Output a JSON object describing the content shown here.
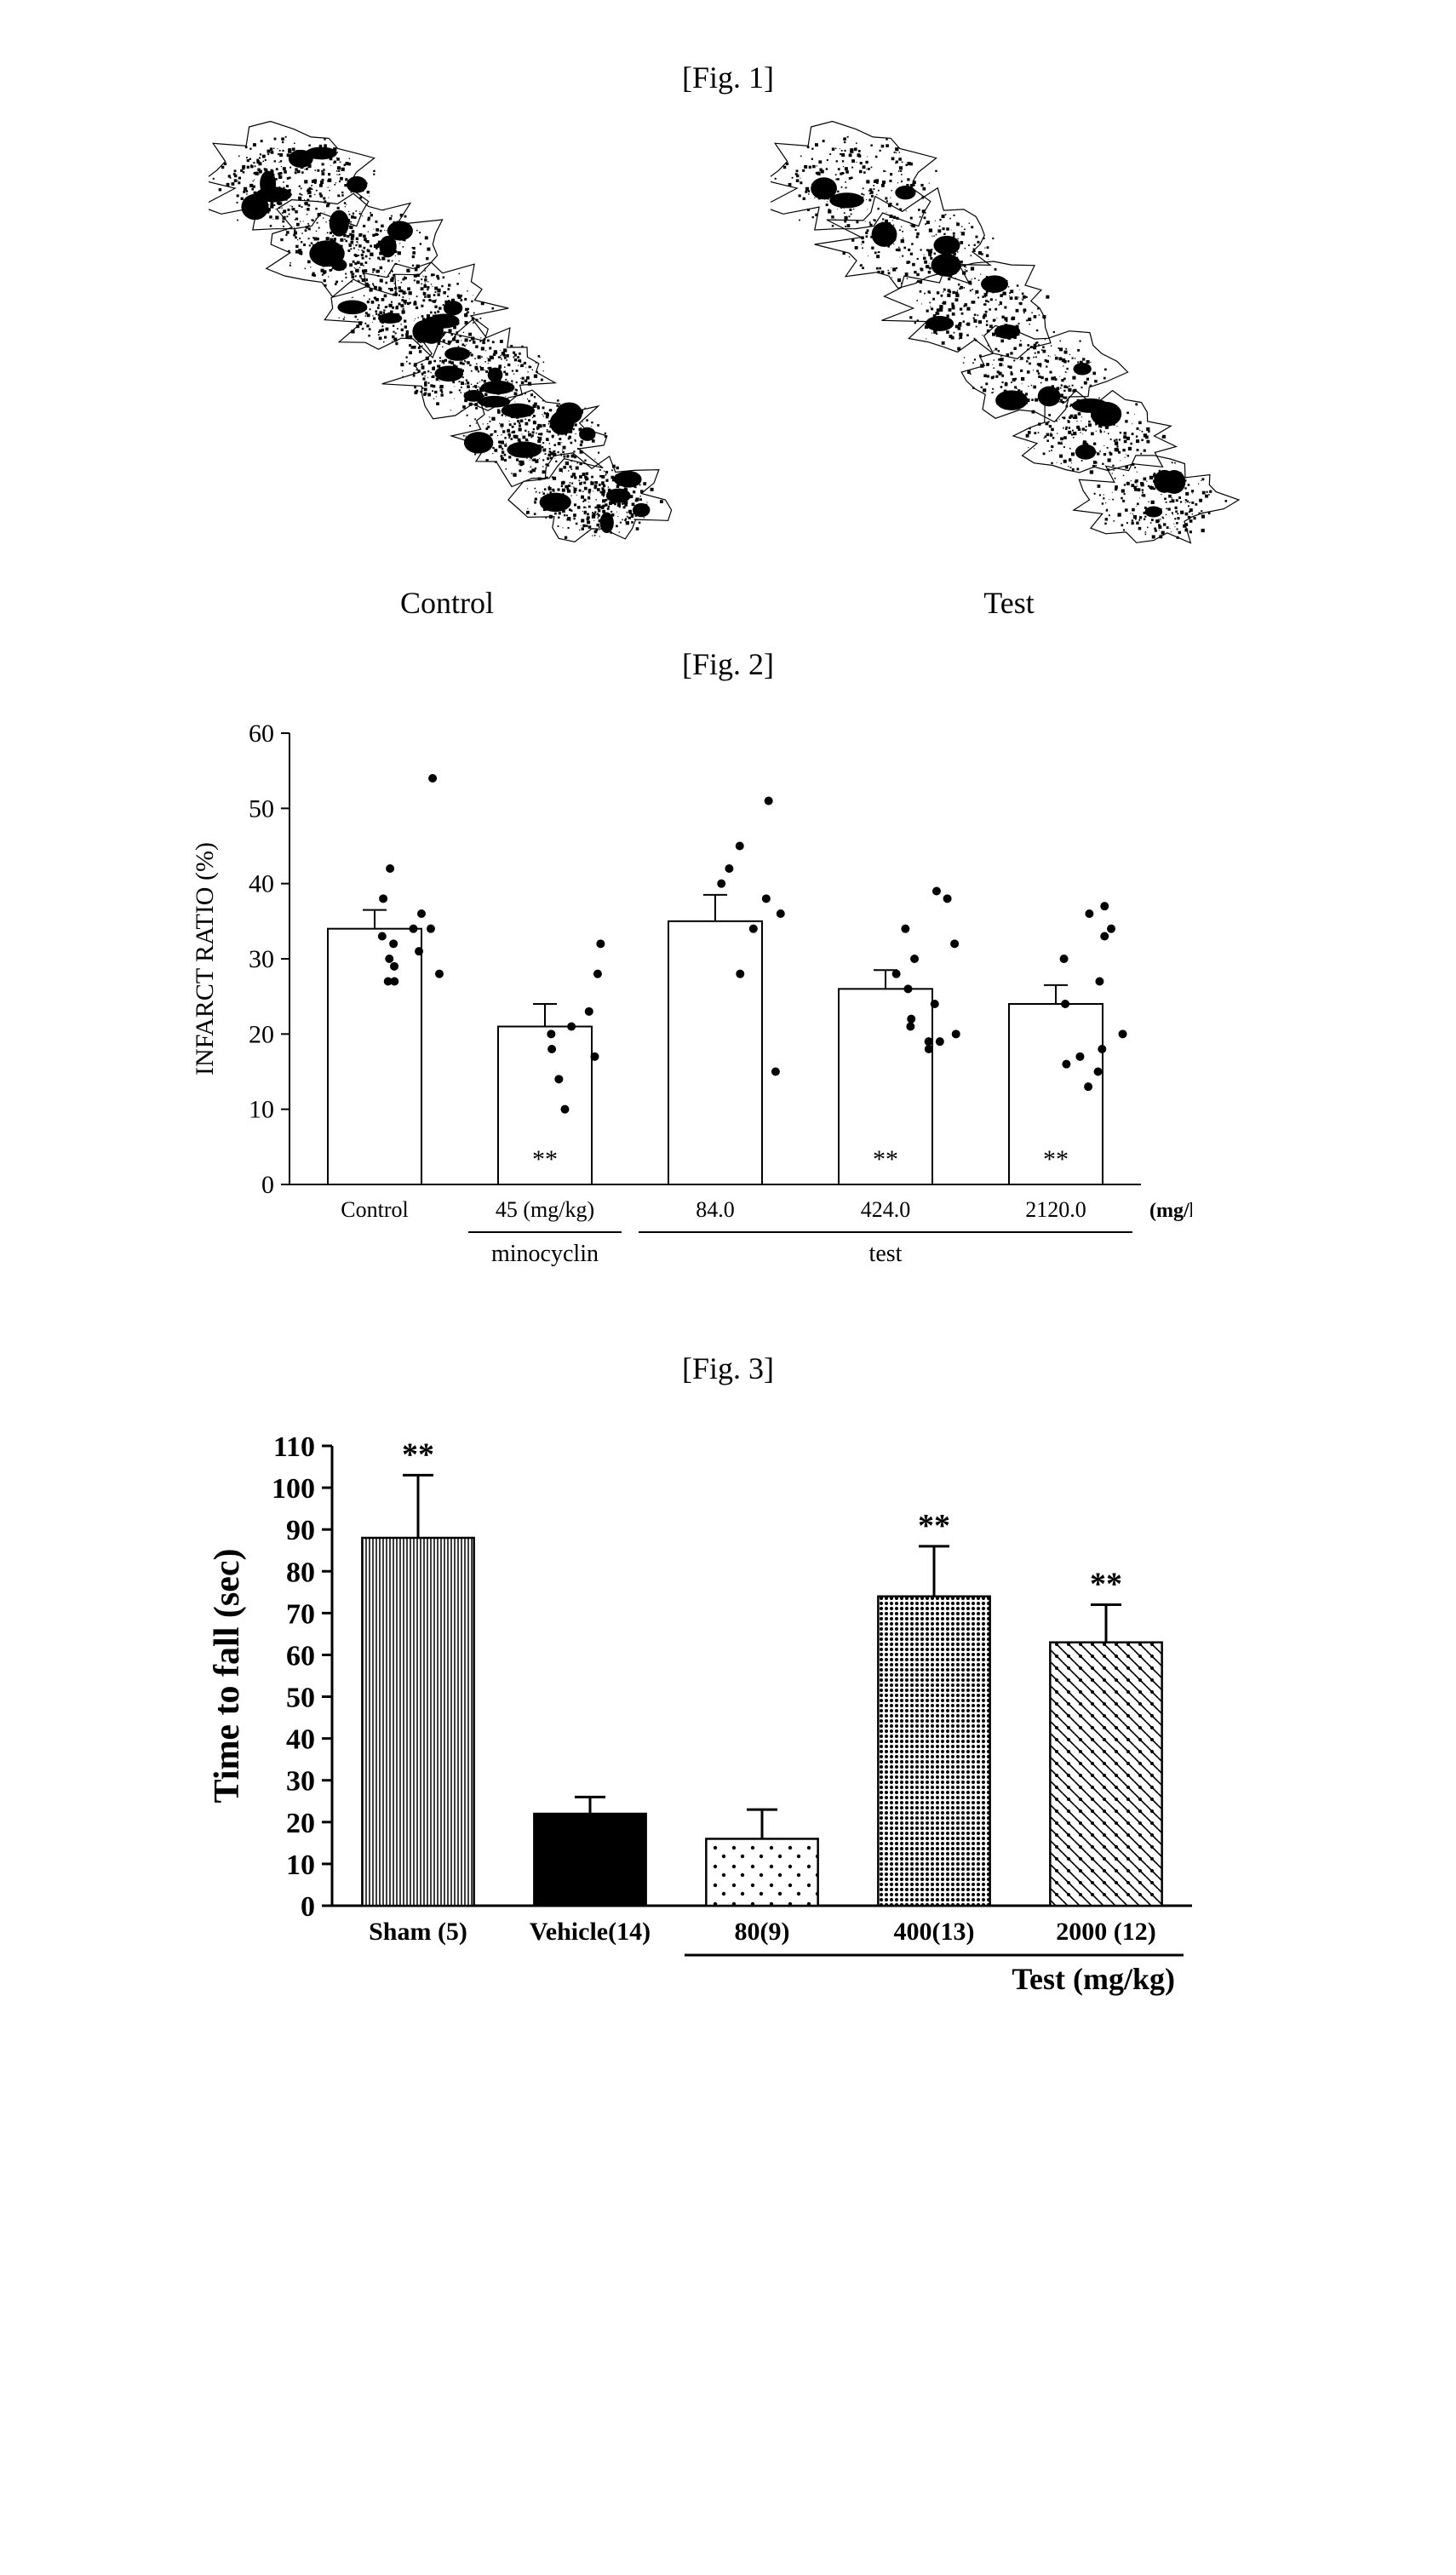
{
  "fig1": {
    "label": "[Fig. 1]",
    "panels": [
      {
        "caption": "Control",
        "density": 1.0
      },
      {
        "caption": "Test",
        "density": 0.65
      }
    ]
  },
  "fig2": {
    "label": "[Fig. 2]",
    "type": "bar-with-scatter",
    "ylabel": "INFARCT RATIO (%)",
    "ylim": [
      0,
      60
    ],
    "ytick_step": 10,
    "bar_fill": "#ffffff",
    "bar_stroke": "#000000",
    "bar_width": 0.55,
    "point_color": "#000000",
    "categories": [
      "Control",
      "45 (mg/kg)",
      "84.0",
      "424.0",
      "2120.0"
    ],
    "unit_suffix": "(mg/kg)",
    "bars": [
      {
        "mean": 34,
        "err": 2.5,
        "sig": "",
        "points": [
          54,
          42,
          38,
          36,
          34,
          34,
          33,
          32,
          31,
          30,
          29,
          28,
          27,
          27
        ]
      },
      {
        "mean": 21,
        "err": 3.0,
        "sig": "**",
        "points": [
          32,
          28,
          23,
          21,
          20,
          18,
          17,
          14,
          10
        ]
      },
      {
        "mean": 35,
        "err": 3.5,
        "sig": "",
        "points": [
          51,
          45,
          42,
          40,
          38,
          36,
          34,
          28,
          15
        ]
      },
      {
        "mean": 26,
        "err": 2.5,
        "sig": "**",
        "points": [
          39,
          38,
          34,
          32,
          30,
          28,
          26,
          24,
          22,
          21,
          20,
          19,
          19,
          18
        ]
      },
      {
        "mean": 24,
        "err": 2.5,
        "sig": "**",
        "points": [
          37,
          36,
          34,
          33,
          30,
          27,
          24,
          20,
          18,
          17,
          16,
          15,
          13
        ]
      }
    ],
    "group_labels": [
      {
        "text": "minocyclin",
        "cols": [
          1
        ]
      },
      {
        "text": "test",
        "cols": [
          2,
          3,
          4
        ]
      }
    ]
  },
  "fig3": {
    "label": "[Fig. 3]",
    "type": "bar",
    "ylabel": "Time to fall (sec)",
    "ylim": [
      0,
      110
    ],
    "ytick_step": 10,
    "bar_stroke": "#000000",
    "bar_width": 0.65,
    "categories": [
      "Sham (5)",
      "Vehicle(14)",
      "80(9)",
      "400(13)",
      "2000 (12)"
    ],
    "bars": [
      {
        "mean": 88,
        "err": 15,
        "sig": "**",
        "pattern": "vlines"
      },
      {
        "mean": 22,
        "err": 4,
        "sig": "",
        "pattern": "solid"
      },
      {
        "mean": 16,
        "err": 7,
        "sig": "",
        "pattern": "dots-sparse"
      },
      {
        "mean": 74,
        "err": 12,
        "sig": "**",
        "pattern": "dots-dense"
      },
      {
        "mean": 63,
        "err": 9,
        "sig": "**",
        "pattern": "crosshatch"
      }
    ],
    "group_label": {
      "text": "Test   (mg/kg)",
      "cols": [
        2,
        3,
        4
      ]
    }
  }
}
